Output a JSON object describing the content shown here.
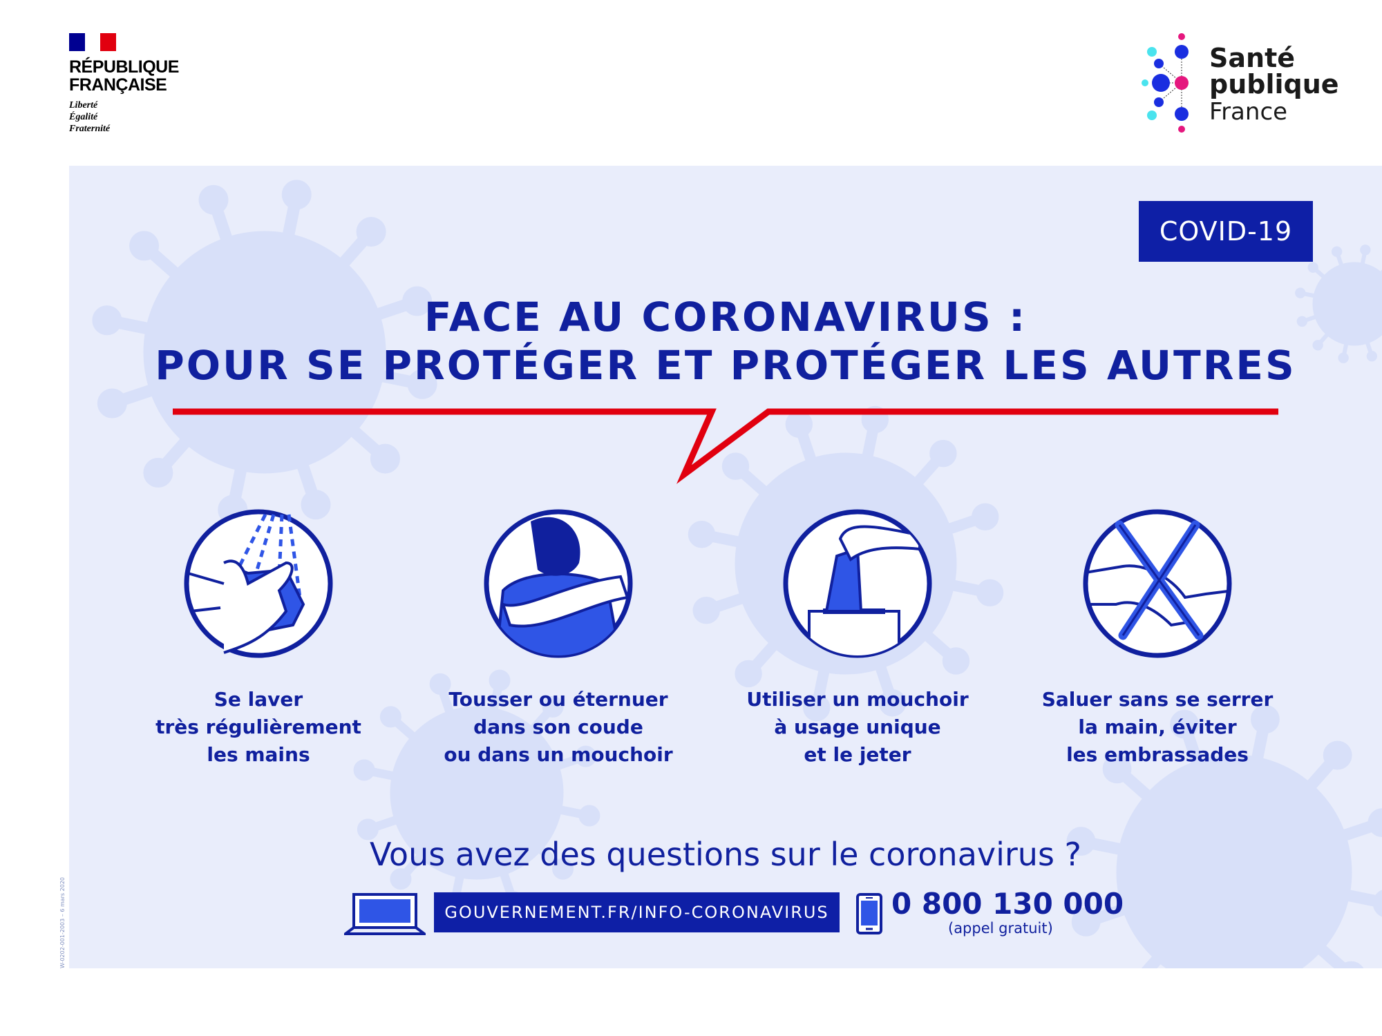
{
  "header": {
    "rf_logo": {
      "line1": "RÉPUBLIQUE",
      "line2": "FRANÇAISE",
      "motto": [
        "Liberté",
        "Égalité",
        "Fraternité"
      ]
    },
    "spf_logo": {
      "line1": "Santé",
      "line2": "publique",
      "line3": "France"
    }
  },
  "badge": "COVID-19",
  "title": {
    "line1": "FACE AU CORONAVIRUS :",
    "line2": "POUR SE PROTÉGER ET PROTÉGER LES AUTRES"
  },
  "steps": [
    {
      "icon": "hand-washing-icon",
      "lines": [
        "Se laver",
        "très régulièrement",
        "les mains"
      ]
    },
    {
      "icon": "cough-elbow-icon",
      "lines": [
        "Tousser ou éternuer",
        "dans son coude",
        "ou dans un mouchoir"
      ]
    },
    {
      "icon": "tissue-box-icon",
      "lines": [
        "Utiliser un mouchoir",
        "à usage unique",
        "et le jeter"
      ]
    },
    {
      "icon": "no-handshake-icon",
      "lines": [
        "Saluer sans se serrer",
        "la main, éviter",
        "les embrassades"
      ]
    }
  ],
  "contact": {
    "question": "Vous avez des questions sur le coronavirus ?",
    "url": "GOUVERNEMENT.FR/INFO-CORONAVIRUS",
    "phone": "0 800 130 000",
    "phone_note": "(appel gratuit)"
  },
  "reference": "W-0202-001-2003 – 6 mars 2020",
  "colors": {
    "primary_blue": "#10209e",
    "accent_blue": "#2f55e6",
    "red": "#e1000f",
    "panel": "#e9edfb"
  }
}
